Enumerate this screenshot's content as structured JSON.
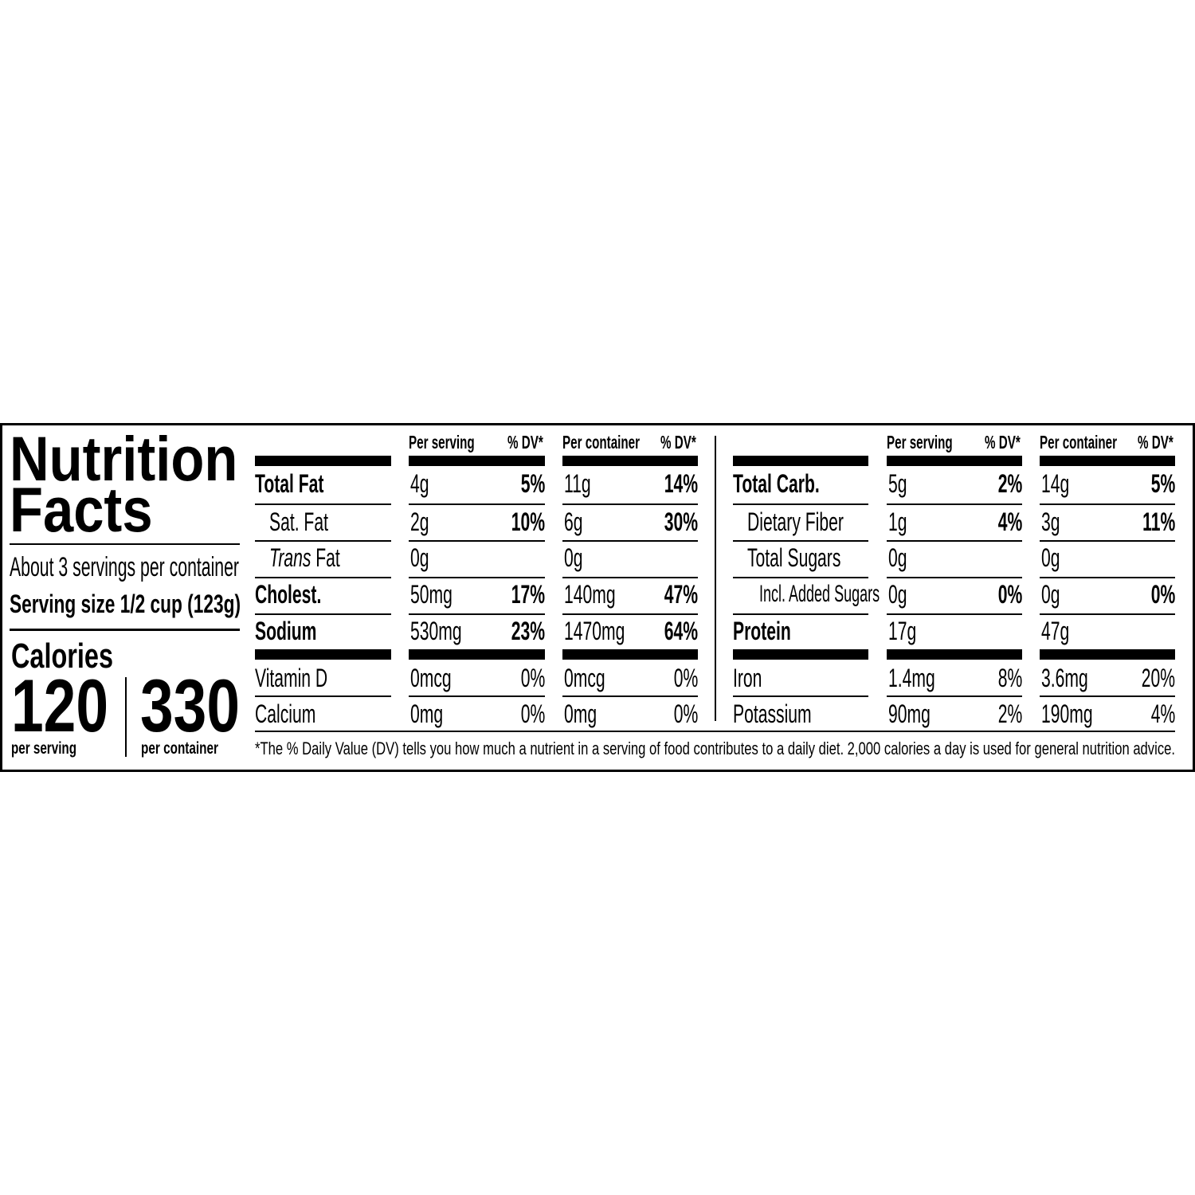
{
  "title_line1": "Nutrition",
  "title_line2": "Facts",
  "servings_per_container": "About 3 servings per container",
  "serving_size": "Serving size 1/2 cup (123g)",
  "calories": {
    "label": "Calories",
    "per_serving": "120",
    "per_serving_label": "per serving",
    "per_container": "330",
    "per_container_label": "per container"
  },
  "column_headers": [
    "Per serving",
    "% DV*",
    "Per container",
    "% DV*"
  ],
  "left_table": {
    "rows": [
      {
        "label": "Total Fat",
        "bold": true,
        "indent": 0,
        "serving": "4g",
        "serving_dv": "5%",
        "container": "11g",
        "container_dv": "14%",
        "dv_bold": true
      },
      {
        "label": "Sat. Fat",
        "bold": false,
        "indent": 1,
        "serving": "2g",
        "serving_dv": "10%",
        "container": "6g",
        "container_dv": "30%",
        "dv_bold": true
      },
      {
        "label": "Fat",
        "italic_prefix": "Trans",
        "bold": false,
        "indent": 1,
        "serving": "0g",
        "serving_dv": "",
        "container": "0g",
        "container_dv": "",
        "dv_bold": true
      },
      {
        "label": "Cholest.",
        "bold": true,
        "indent": 0,
        "serving": "50mg",
        "serving_dv": "17%",
        "container": "140mg",
        "container_dv": "47%",
        "dv_bold": true
      },
      {
        "label": "Sodium",
        "bold": true,
        "indent": 0,
        "serving": "530mg",
        "serving_dv": "23%",
        "container": "1470mg",
        "container_dv": "64%",
        "dv_bold": true
      },
      {
        "label": "Vitamin D",
        "bold": false,
        "indent": 0,
        "serving": "0mcg",
        "serving_dv": "0%",
        "container": "0mcg",
        "container_dv": "0%",
        "dv_bold": false
      },
      {
        "label": "Calcium",
        "bold": false,
        "indent": 0,
        "serving": "0mg",
        "serving_dv": "0%",
        "container": "0mg",
        "container_dv": "0%",
        "dv_bold": false
      }
    ]
  },
  "right_table": {
    "rows": [
      {
        "label": "Total Carb.",
        "bold": true,
        "indent": 0,
        "serving": "5g",
        "serving_dv": "2%",
        "container": "14g",
        "container_dv": "5%",
        "dv_bold": true
      },
      {
        "label": "Dietary Fiber",
        "bold": false,
        "indent": 1,
        "serving": "1g",
        "serving_dv": "4%",
        "container": "3g",
        "container_dv": "11%",
        "dv_bold": true
      },
      {
        "label": "Total Sugars",
        "bold": false,
        "indent": 1,
        "serving": "0g",
        "serving_dv": "",
        "container": "0g",
        "container_dv": "",
        "dv_bold": true
      },
      {
        "label": "Incl. Added Sugars",
        "bold": false,
        "indent": 2,
        "serving": "0g",
        "serving_dv": "0%",
        "container": "0g",
        "container_dv": "0%",
        "dv_bold": true
      },
      {
        "label": "Protein",
        "bold": true,
        "indent": 0,
        "serving": "17g",
        "serving_dv": "",
        "container": "47g",
        "container_dv": "",
        "dv_bold": true
      },
      {
        "label": "Iron",
        "bold": false,
        "indent": 0,
        "serving": "1.4mg",
        "serving_dv": "8%",
        "container": "3.6mg",
        "container_dv": "20%",
        "dv_bold": false
      },
      {
        "label": "Potassium",
        "bold": false,
        "indent": 0,
        "serving": "90mg",
        "serving_dv": "2%",
        "container": "190mg",
        "container_dv": "4%",
        "dv_bold": false
      }
    ]
  },
  "footnote": "*The % Daily Value (DV) tells you how much a nutrient in a serving of food contributes to a daily diet. 2,000 calories a day is used for general nutrition advice."
}
